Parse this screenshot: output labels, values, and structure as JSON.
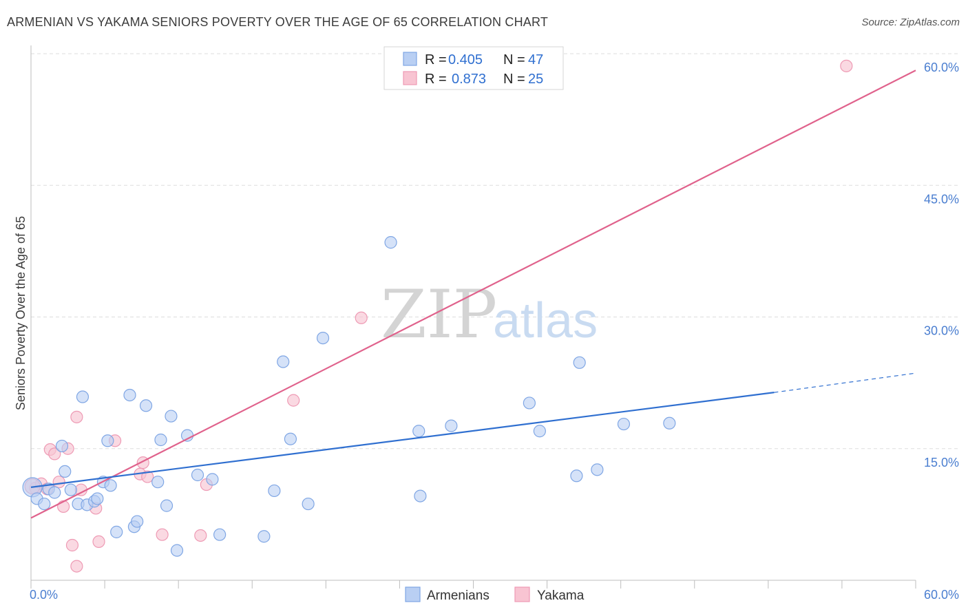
{
  "title": "ARMENIAN VS YAKAMA SENIORS POVERTY OVER THE AGE OF 65 CORRELATION CHART",
  "source": "Source: ZipAtlas.com",
  "watermark": {
    "zip": "ZIP",
    "atlas": "atlas"
  },
  "colors": {
    "armenians_fill": "#b9cff3",
    "armenians_stroke": "#7fa6e4",
    "armenians_line": "#2f6fd0",
    "yakama_fill": "#f8c4d2",
    "yakama_stroke": "#ee9ab4",
    "yakama_line": "#e0628c",
    "grid": "#dddddd",
    "tick_text": "#4a7ed0"
  },
  "legend": {
    "rows": [
      {
        "r_label": "R =",
        "r_value": "0.405",
        "n_label": "N =",
        "n_value": "47"
      },
      {
        "r_label": "R =",
        "r_value": "0.873",
        "n_label": "N =",
        "n_value": "25"
      }
    ]
  },
  "bottom_legend": {
    "series1": "Armenians",
    "series2": "Yakama"
  },
  "chart_data": {
    "type": "scatter",
    "title": "ARMENIAN VS YAKAMA SENIORS POVERTY OVER THE AGE OF 65 CORRELATION CHART",
    "xlabel": "",
    "ylabel": "Seniors Poverty Over the Age of 65",
    "xlim": [
      0,
      60
    ],
    "ylim": [
      0,
      60
    ],
    "x_tick_labels": [
      "0.0%",
      "60.0%"
    ],
    "y_ticks": [
      15,
      30,
      45,
      60
    ],
    "y_tick_labels": [
      "15.0%",
      "30.0%",
      "45.0%",
      "60.0%"
    ],
    "grid": true,
    "series": [
      {
        "name": "Armenians",
        "R": 0.405,
        "N": 47,
        "points": [
          [
            0.1,
            10.6
          ],
          [
            0.4,
            9.3
          ],
          [
            0.9,
            8.7
          ],
          [
            1.2,
            10.4
          ],
          [
            1.6,
            10.0
          ],
          [
            2.1,
            15.3
          ],
          [
            2.3,
            12.4
          ],
          [
            2.7,
            10.3
          ],
          [
            3.2,
            8.7
          ],
          [
            3.5,
            20.9
          ],
          [
            3.8,
            8.6
          ],
          [
            4.3,
            9.0
          ],
          [
            4.5,
            9.3
          ],
          [
            4.9,
            11.2
          ],
          [
            5.2,
            15.9
          ],
          [
            5.4,
            10.8
          ],
          [
            5.8,
            5.5
          ],
          [
            6.7,
            21.1
          ],
          [
            7.0,
            6.1
          ],
          [
            7.2,
            6.7
          ],
          [
            7.8,
            19.9
          ],
          [
            8.6,
            11.2
          ],
          [
            8.8,
            16.0
          ],
          [
            9.2,
            8.5
          ],
          [
            9.5,
            18.7
          ],
          [
            9.9,
            3.4
          ],
          [
            10.6,
            16.5
          ],
          [
            11.3,
            12.0
          ],
          [
            12.3,
            11.5
          ],
          [
            12.8,
            5.2
          ],
          [
            15.8,
            5.0
          ],
          [
            16.5,
            10.2
          ],
          [
            17.1,
            24.9
          ],
          [
            17.6,
            16.1
          ],
          [
            18.8,
            8.7
          ],
          [
            19.8,
            27.6
          ],
          [
            24.4,
            38.5
          ],
          [
            26.3,
            17.0
          ],
          [
            26.4,
            9.6
          ],
          [
            28.5,
            17.6
          ],
          [
            33.8,
            20.2
          ],
          [
            34.5,
            17.0
          ],
          [
            37.0,
            11.9
          ],
          [
            37.2,
            24.8
          ],
          [
            38.4,
            12.6
          ],
          [
            40.2,
            17.8
          ],
          [
            43.3,
            17.9
          ]
        ],
        "trend": {
          "x": [
            0,
            50.4
          ],
          "y": [
            10.6,
            21.4
          ],
          "dashed_extension": {
            "x": [
              50.4,
              60
            ],
            "y": [
              21.4,
              23.6
            ]
          }
        }
      },
      {
        "name": "Yakama",
        "R": 0.873,
        "N": 25,
        "points": [
          [
            0.3,
            10.5
          ],
          [
            0.7,
            11.0
          ],
          [
            1.1,
            10.4
          ],
          [
            1.3,
            14.9
          ],
          [
            1.6,
            14.4
          ],
          [
            1.9,
            11.2
          ],
          [
            2.2,
            8.4
          ],
          [
            2.5,
            15.0
          ],
          [
            2.8,
            4.0
          ],
          [
            3.1,
            18.6
          ],
          [
            3.1,
            1.6
          ],
          [
            3.4,
            10.3
          ],
          [
            4.4,
            8.2
          ],
          [
            4.6,
            4.4
          ],
          [
            5.7,
            15.9
          ],
          [
            7.4,
            12.1
          ],
          [
            7.6,
            13.4
          ],
          [
            7.9,
            11.8
          ],
          [
            8.9,
            5.2
          ],
          [
            11.5,
            5.1
          ],
          [
            11.9,
            10.9
          ],
          [
            17.8,
            20.5
          ],
          [
            22.4,
            29.9
          ],
          [
            55.3,
            58.6
          ],
          [
            0.1,
            10.7
          ]
        ],
        "trend": {
          "x": [
            0,
            60
          ],
          "y": [
            7.1,
            58.1
          ]
        }
      }
    ]
  }
}
